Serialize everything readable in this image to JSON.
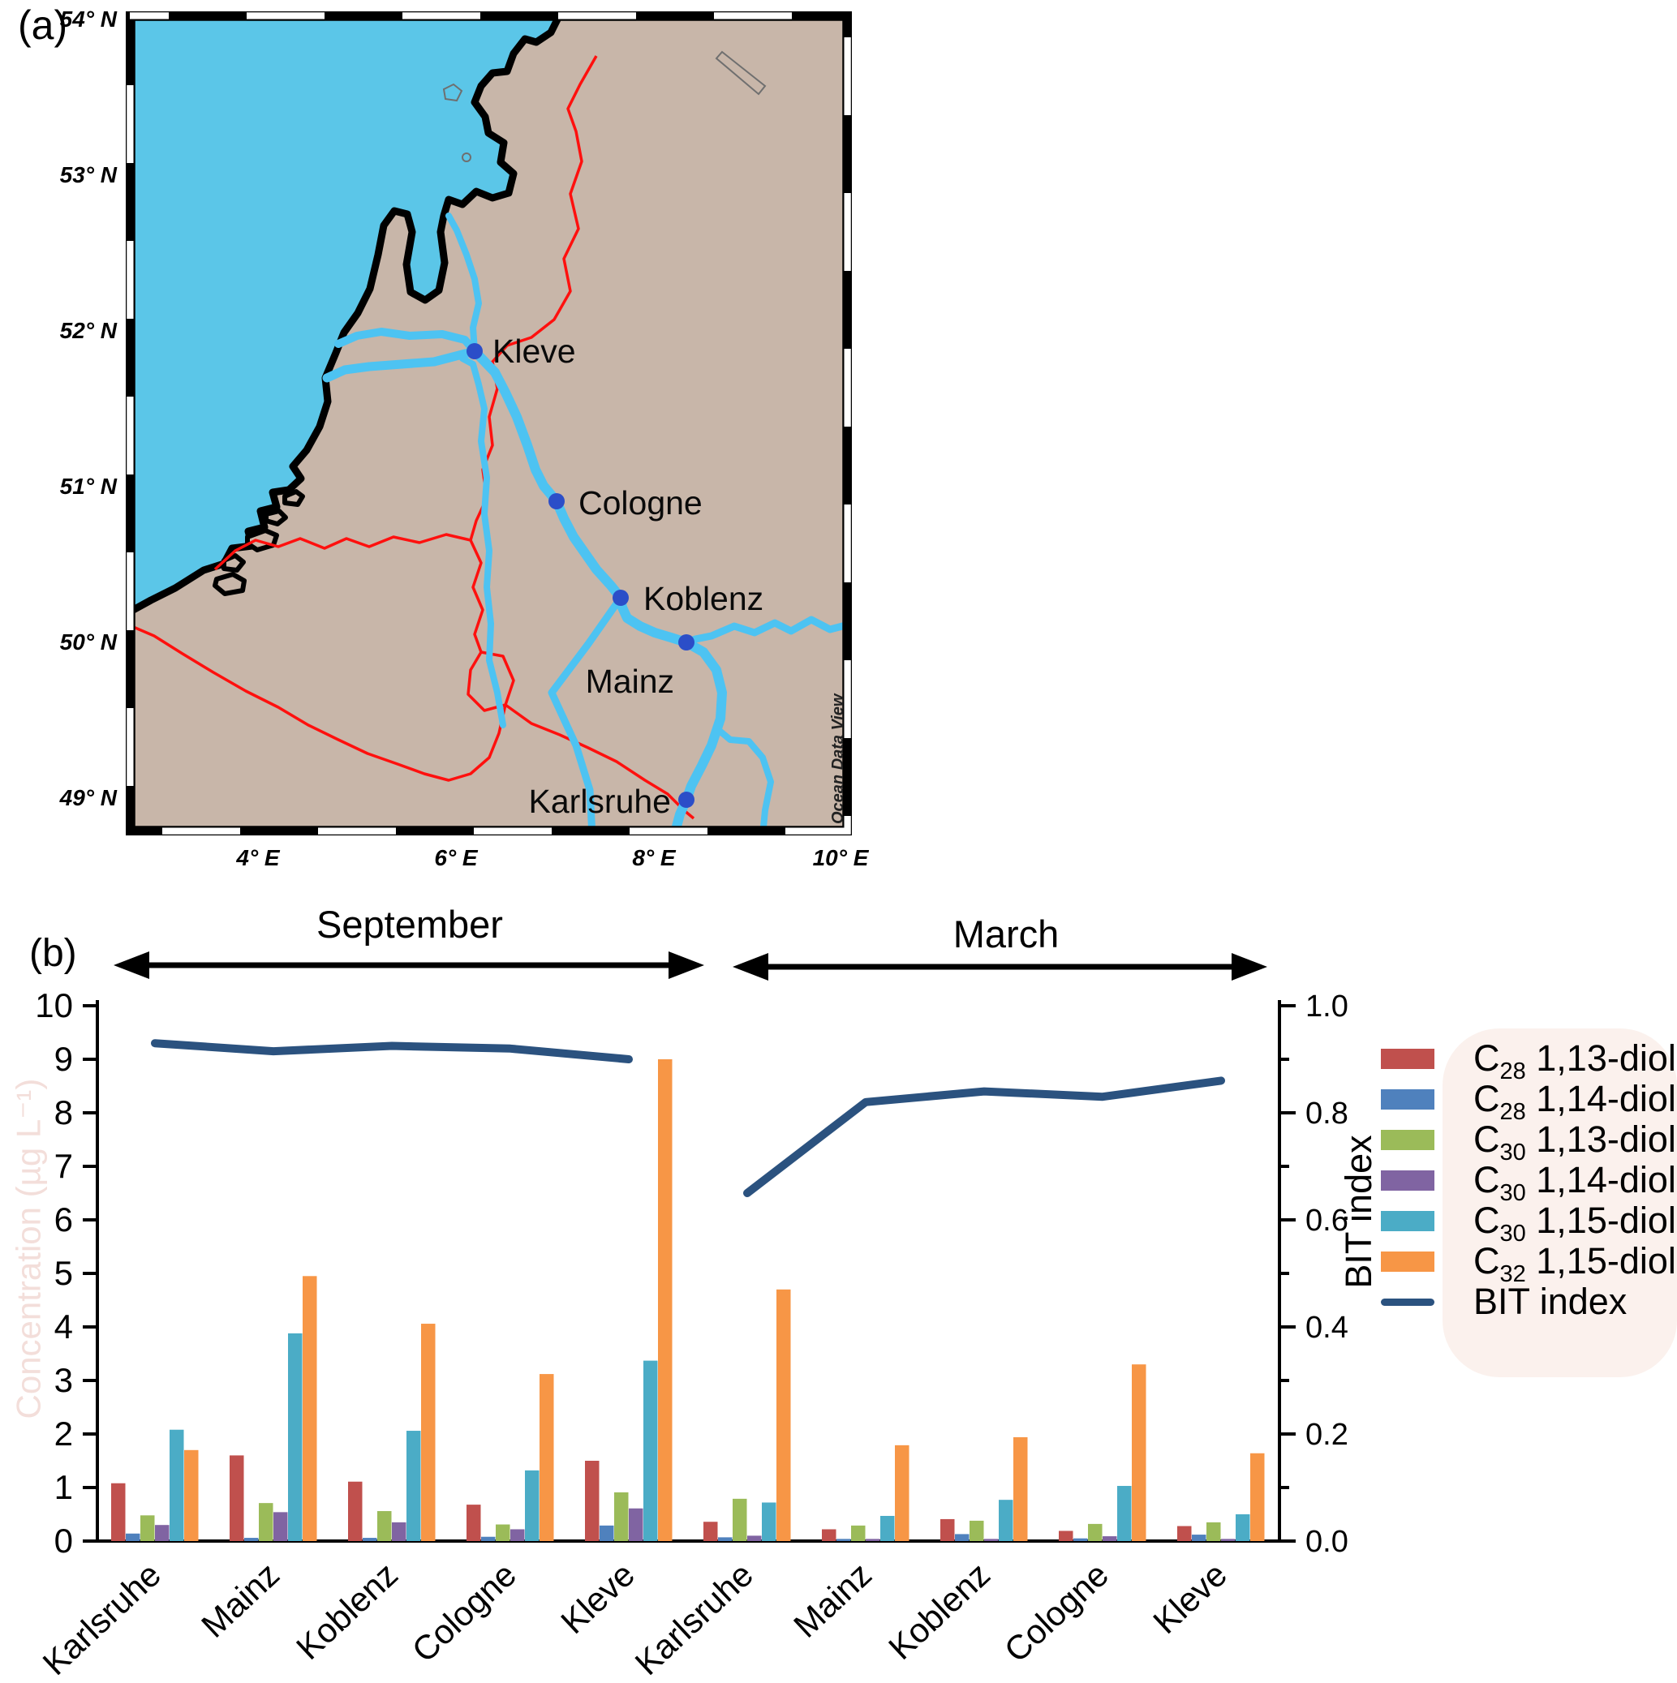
{
  "panel_a": {
    "label": "(a)",
    "map": {
      "attribution": "Ocean Data View",
      "lat_labels": [
        "54° N",
        "53° N",
        "52° N",
        "51° N",
        "50° N",
        "49° N"
      ],
      "lon_labels": [
        "4° E",
        "6° E",
        "8° E",
        "10° E"
      ],
      "cities": [
        "Kleve",
        "Cologne",
        "Koblenz",
        "Mainz",
        "Karlsruhe"
      ],
      "colors": {
        "sea": "#5bc6e8",
        "land": "#c8b6a9",
        "coast": "#000000",
        "river": "#4dc3f2",
        "border": "#ff100e",
        "city_dot": "#2b4ec8"
      }
    }
  },
  "panel_b": {
    "label": "(b)",
    "seasons": [
      {
        "label": "September"
      },
      {
        "label": "March"
      }
    ]
  },
  "chart_data": {
    "type": "bar",
    "title": "",
    "categories": [
      "Karlsruhe",
      "Mainz",
      "Koblenz",
      "Cologne",
      "Kleve",
      "Karlsruhe",
      "Mainz",
      "Koblenz",
      "Cologne",
      "Kleve"
    ],
    "season_of_group": [
      "September",
      "September",
      "September",
      "September",
      "September",
      "March",
      "March",
      "March",
      "March",
      "March"
    ],
    "ylabel_left": "Concentration (µg L⁻¹)",
    "ylabel_right": "BIT index",
    "ylim_left": [
      0,
      10
    ],
    "ylim_right": [
      0.0,
      1.0
    ],
    "yticks_left": [
      "0",
      "1",
      "2",
      "3",
      "4",
      "5",
      "6",
      "7",
      "8",
      "9",
      "10"
    ],
    "yticks_right": [
      "0.0",
      "0.2",
      "0.4",
      "0.6",
      "0.8",
      "1.0"
    ],
    "grid": false,
    "legend_position": "right",
    "series": [
      {
        "name": "C28 1,13-diol",
        "color": "#c0504d",
        "values": [
          1.08,
          1.6,
          1.11,
          0.68,
          1.5,
          0.36,
          0.22,
          0.41,
          0.19,
          0.28
        ]
      },
      {
        "name": "C28 1,14-diol",
        "color": "#4f81bd",
        "values": [
          0.14,
          0.06,
          0.06,
          0.08,
          0.29,
          0.07,
          0.04,
          0.13,
          0.05,
          0.12
        ]
      },
      {
        "name": "C30 1,13-diol",
        "color": "#9bbb59",
        "values": [
          0.48,
          0.71,
          0.56,
          0.31,
          0.91,
          0.79,
          0.29,
          0.38,
          0.32,
          0.35
        ]
      },
      {
        "name": "C30 1,14-diol",
        "color": "#8064a2",
        "values": [
          0.3,
          0.54,
          0.35,
          0.22,
          0.61,
          0.1,
          0.04,
          0.04,
          0.09,
          0.04
        ]
      },
      {
        "name": "C30 1,15-diol",
        "color": "#4bacc6",
        "values": [
          2.08,
          3.88,
          2.06,
          1.32,
          3.37,
          0.72,
          0.47,
          0.77,
          1.03,
          0.5
        ]
      },
      {
        "name": "C32 1,15-diol",
        "color": "#f79646",
        "values": [
          1.7,
          4.95,
          4.06,
          3.12,
          9.0,
          4.7,
          1.79,
          1.94,
          3.3,
          1.64
        ]
      }
    ],
    "line_series": {
      "name": "BIT index",
      "color": "#2b527f",
      "september_values": [
        0.93,
        0.915,
        0.925,
        0.92,
        0.9
      ],
      "march_values": [
        0.65,
        0.82,
        0.84,
        0.83,
        0.86
      ]
    }
  },
  "legend": {
    "items": [
      {
        "c": "C",
        "sub": "28",
        "rest": " 1,13-diol",
        "color": "#c0504d",
        "type": "box"
      },
      {
        "c": "C",
        "sub": "28",
        "rest": " 1,14-diol",
        "color": "#4f81bd",
        "type": "box"
      },
      {
        "c": "C",
        "sub": "30",
        "rest": " 1,13-diol",
        "color": "#9bbb59",
        "type": "box"
      },
      {
        "c": "C",
        "sub": "30",
        "rest": " 1,14-diol",
        "color": "#8064a2",
        "type": "box"
      },
      {
        "c": "C",
        "sub": "30",
        "rest": " 1,15-diol",
        "color": "#4bacc6",
        "type": "box"
      },
      {
        "c": "C",
        "sub": "32",
        "rest": " 1,15-diol",
        "color": "#f79646",
        "type": "box"
      },
      {
        "c": "",
        "sub": "",
        "rest": "BIT index",
        "color": "#2b527f",
        "type": "line"
      }
    ]
  }
}
